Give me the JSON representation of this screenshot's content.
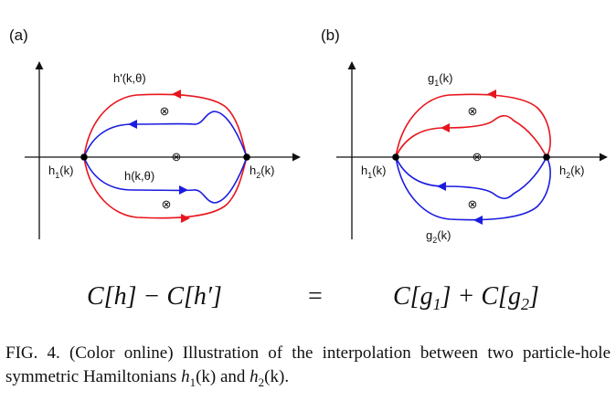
{
  "figure": {
    "panel_a": {
      "tag": "(a)",
      "label_h_prime": "h'(k,θ)",
      "label_h": "h(k,θ)",
      "label_h1": "h",
      "label_h1_sub": "1",
      "label_h1_tail": "(k)",
      "label_h2": "h",
      "label_h2_sub": "2",
      "label_h2_tail": "(k)"
    },
    "panel_b": {
      "tag": "(b)",
      "label_g1": "g",
      "label_g1_sub": "1",
      "label_g1_tail": "(k)",
      "label_g2": "g",
      "label_g2_sub": "2",
      "label_g2_tail": "(k)",
      "label_h1": "h",
      "label_h1_sub": "1",
      "label_h1_tail": "(k)",
      "label_h2": "h",
      "label_h2_sub": "2",
      "label_h2_tail": "(k)"
    },
    "equation": {
      "lhs": "C[h] − C[h′]",
      "equals": "=",
      "rhs_a": "C[g",
      "rhs_a_sub": "1",
      "rhs_plus": "] + C[g",
      "rhs_b_sub": "2",
      "rhs_close": "]"
    },
    "colors": {
      "red": "#e8141c",
      "blue": "#1b1be0",
      "axis": "#111111"
    },
    "marker": "⊗"
  },
  "caption": {
    "prefix": "FIG. 4. (Color online) Illustration of the interpolation between two particle-hole symmetric Hamiltonians ",
    "h1": "h",
    "h1_sub": "1",
    "h1_arg": "(k)",
    "and": " and ",
    "h2": "h",
    "h2_sub": "2",
    "h2_arg": "(k)",
    "end": "."
  }
}
